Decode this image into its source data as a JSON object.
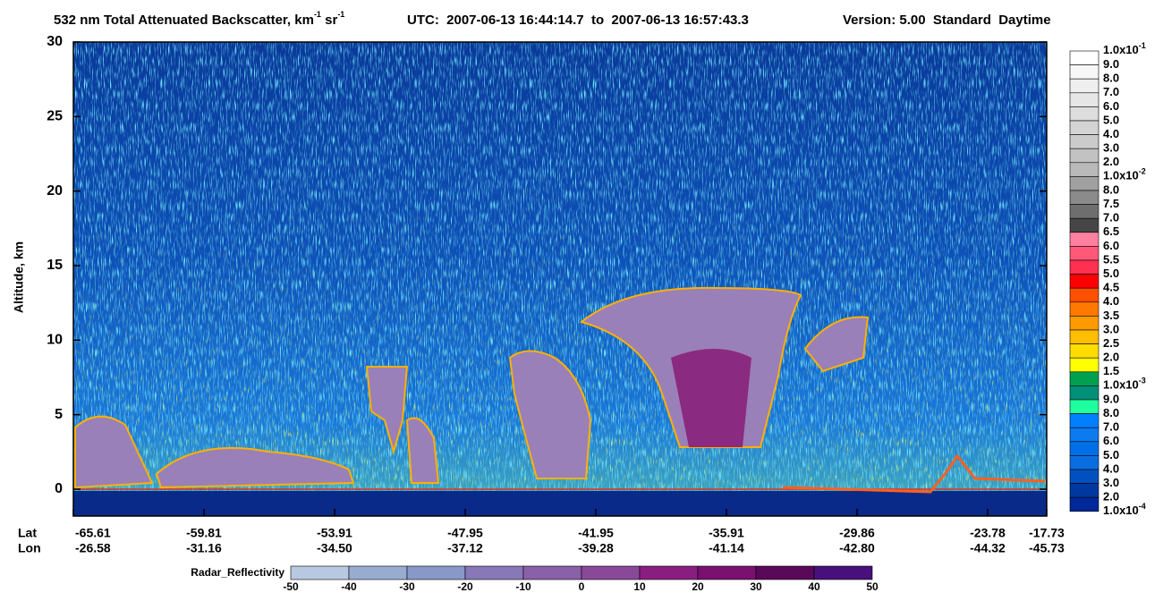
{
  "chart_data": {
    "type": "curtain",
    "title": {
      "text": "532 nm Total Attenuated Backscatter, km",
      "sup1": "-1",
      "text2": " sr",
      "sup2": "-1"
    },
    "utc": "UTC:  2007-06-13 16:44:14.7  to  2007-06-13 16:57:43.3",
    "version": "Version: 5.00  Standard  Daytime",
    "y_label": "Altitude, km",
    "ylim": [
      -1.8,
      30
    ],
    "yticks": [
      0,
      5,
      10,
      15,
      20,
      25,
      30
    ],
    "x_rows": [
      {
        "name": "Lat",
        "labels": [
          "-65.61",
          "-59.81",
          "-53.91",
          "-47.95",
          "-41.95",
          "-35.91",
          "-29.86",
          "-23.78",
          "-17.73"
        ]
      },
      {
        "name": "Lon",
        "labels": [
          "-26.58",
          "-31.16",
          "-34.50",
          "-37.12",
          "-39.28",
          "-41.14",
          "-42.80",
          "-44.32",
          "-45.73"
        ]
      }
    ],
    "colorbar": {
      "labels": [
        {
          "text": "1.0x10",
          "exp": "-1"
        },
        "9.0",
        "8.0",
        "7.0",
        "6.0",
        "5.0",
        "4.0",
        "3.0",
        "2.0",
        {
          "text": "1.0x10",
          "exp": "-2"
        },
        "8.0",
        "7.5",
        "7.0",
        "6.5",
        "6.0",
        "5.5",
        "5.0",
        "4.5",
        "4.0",
        "3.5",
        "3.0",
        "2.5",
        "2.0",
        "1.5",
        {
          "text": "1.0x10",
          "exp": "-3"
        },
        "9.0",
        "8.0",
        "7.0",
        "6.0",
        "5.0",
        "4.0",
        "3.0",
        "2.0",
        {
          "text": "1.0x10",
          "exp": "-4"
        }
      ],
      "colors": [
        "#ffffff",
        "#f7f7f7",
        "#efefef",
        "#e6e6e6",
        "#dddddd",
        "#d4d4d4",
        "#cbcbcb",
        "#c2c2c2",
        "#b9b9b9",
        "#a0a0a0",
        "#8a8a8a",
        "#6e6e6e",
        "#464646",
        "#ff80a0",
        "#ff5878",
        "#ff3050",
        "#ff0000",
        "#ff5000",
        "#ff7800",
        "#ff9a00",
        "#ffbe00",
        "#ffdd00",
        "#ffff00",
        "#00a050",
        "#00907a",
        "#20ffa0",
        "#0080ff",
        "#0a7cf0",
        "#0070e8",
        "#0a6ee0",
        "#0050c0",
        "#0038a0",
        "#002898"
      ]
    },
    "radar_bar": {
      "label": "Radar_Reflectivity",
      "ticks": [
        -50,
        -40,
        -30,
        -20,
        -10,
        0,
        10,
        20,
        30,
        40,
        50
      ],
      "colors": [
        "#b8c8e0",
        "#98acd0",
        "#8898c8",
        "#8878b8",
        "#8a60a8",
        "#8a4898",
        "#8a1e80",
        "#7a1070",
        "#5a0858",
        "#48107a"
      ]
    }
  }
}
